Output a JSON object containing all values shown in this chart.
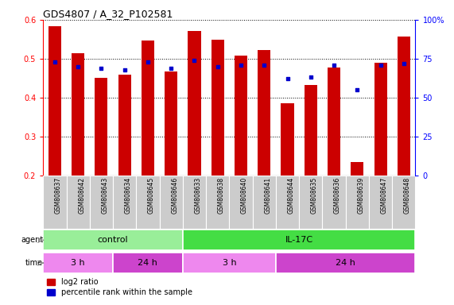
{
  "title": "GDS4807 / A_32_P102581",
  "samples": [
    "GSM808637",
    "GSM808642",
    "GSM808643",
    "GSM808634",
    "GSM808645",
    "GSM808646",
    "GSM808633",
    "GSM808638",
    "GSM808640",
    "GSM808641",
    "GSM808644",
    "GSM808635",
    "GSM808636",
    "GSM808639",
    "GSM808647",
    "GSM808648"
  ],
  "log2_ratio": [
    0.584,
    0.515,
    0.45,
    0.46,
    0.546,
    0.467,
    0.572,
    0.548,
    0.508,
    0.522,
    0.385,
    0.432,
    0.478,
    0.235,
    0.49,
    0.558
  ],
  "percentile": [
    73,
    70,
    69,
    68,
    73,
    69,
    74,
    70,
    71,
    71,
    62,
    63,
    71,
    55,
    71,
    72
  ],
  "bar_bottom": 0.2,
  "ylim_left": [
    0.2,
    0.6
  ],
  "ylim_right": [
    0,
    100
  ],
  "yticks_left": [
    0.2,
    0.3,
    0.4,
    0.5,
    0.6
  ],
  "yticks_right": [
    0,
    25,
    50,
    75,
    100
  ],
  "bar_color": "#cc0000",
  "dot_color": "#0000cc",
  "bg_color": "#ffffff",
  "agent_control_color": "#99ee99",
  "agent_il17c_color": "#44dd44",
  "time_3h_color": "#ee88ee",
  "time_24h_color": "#cc44cc",
  "agent_label": "agent",
  "time_label": "time",
  "control_label": "control",
  "il17c_label": "IL-17C",
  "time_3h_label": "3 h",
  "time_24h_label": "24 h",
  "legend_red": "log2 ratio",
  "legend_blue": "percentile rank within the sample",
  "xlabel_bg": "#cccccc",
  "control_indices": [
    0,
    1,
    2,
    3,
    4,
    5
  ],
  "il17c_3h_indices": [
    6,
    7,
    8,
    9
  ],
  "il17c_24h_indices": [
    10,
    11,
    12,
    13,
    14,
    15
  ]
}
